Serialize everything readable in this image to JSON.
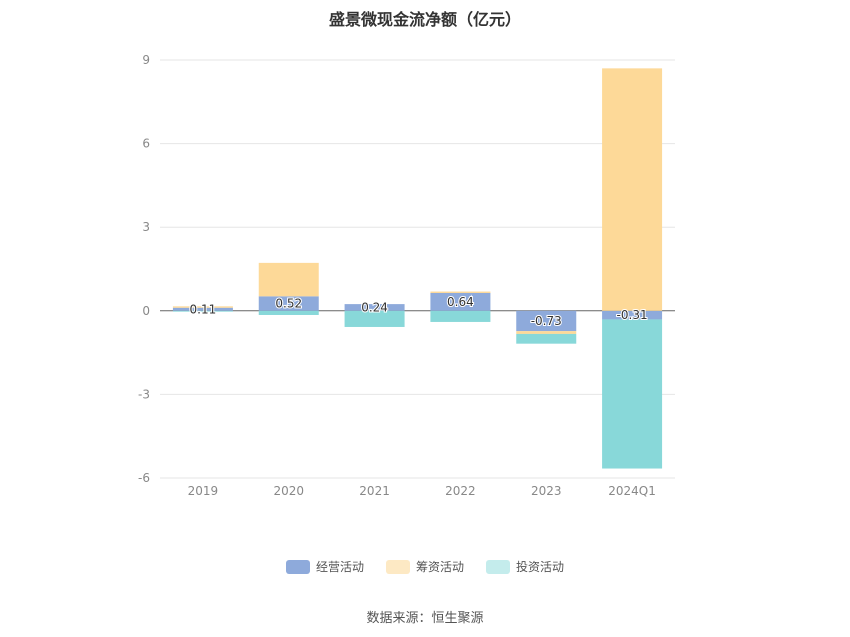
{
  "chart_data": {
    "type": "bar",
    "stacked": true,
    "title": "盛景微现金流净额（亿元）",
    "categories": [
      "2019",
      "2020",
      "2021",
      "2022",
      "2023",
      "2024Q1"
    ],
    "ylim": [
      -6,
      9
    ],
    "yticks": [
      "9",
      "6",
      "3",
      "0",
      "-3",
      "-6"
    ],
    "grid": true,
    "legend_position": "bottom",
    "series": [
      {
        "name": "经营活动",
        "color": "#8eaadb",
        "values": [
          0.11,
          0.52,
          0.24,
          0.64,
          -0.73,
          -0.31
        ]
      },
      {
        "name": "筹资活动",
        "color": "#fdd998",
        "values": [
          0.05,
          1.2,
          0.0,
          0.05,
          -0.1,
          8.7
        ]
      },
      {
        "name": "投资活动",
        "color": "#88d8d9",
        "values": [
          -0.03,
          -0.15,
          -0.58,
          -0.4,
          -0.35,
          -5.35
        ]
      }
    ],
    "data_labels": [
      "0.11",
      "0.52",
      "0.24",
      "0.64",
      "-0.73",
      "-0.31"
    ]
  },
  "source": "数据来源：恒生聚源"
}
